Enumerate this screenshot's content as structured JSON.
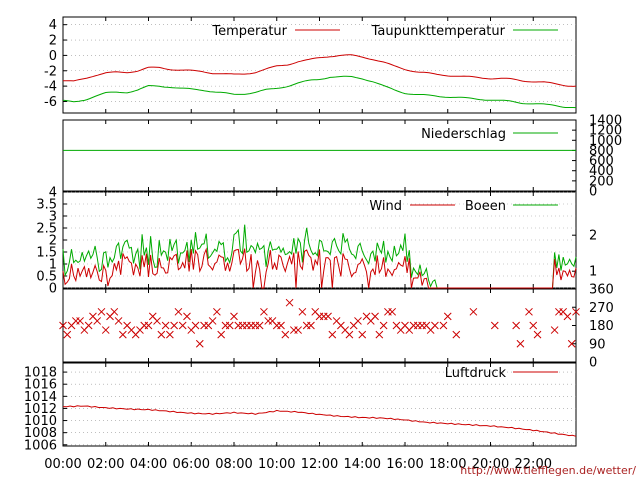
{
  "source_url": "http://www.tiefflegen.de/wetter/",
  "x_axis": {
    "tick_labels": [
      "00:00",
      "02:00",
      "04:00",
      "06:00",
      "08:00",
      "10:00",
      "12:00",
      "14:00",
      "16:00",
      "18:00",
      "20:00",
      "22:00"
    ],
    "range_hours": [
      0,
      24
    ]
  },
  "colors": {
    "red": "#cc0000",
    "green": "#00aa00",
    "grid": "#999999"
  },
  "chart_data": [
    {
      "type": "line",
      "panel": "temperature",
      "x_hours": [
        0,
        0.5,
        1,
        1.5,
        2,
        2.5,
        3,
        3.5,
        4,
        4.5,
        5,
        5.5,
        6,
        6.5,
        7,
        7.5,
        8,
        8.5,
        9,
        9.5,
        10,
        10.5,
        11,
        11.5,
        12,
        12.5,
        13,
        13.5,
        14,
        14.5,
        15,
        15.5,
        16,
        16.5,
        17,
        17.5,
        18,
        18.5,
        19,
        19.5,
        20,
        20.5,
        21,
        21.5,
        22,
        22.5,
        23,
        23.5,
        24
      ],
      "series": [
        {
          "name": "Temperatur",
          "color": "#cc0000",
          "values": [
            -3.3,
            -3.4,
            -3.0,
            -2.6,
            -2.3,
            -2.2,
            -2.2,
            -2.0,
            -1.6,
            -1.6,
            -1.8,
            -1.9,
            -2.0,
            -2.1,
            -2.3,
            -2.4,
            -2.5,
            -2.4,
            -2.2,
            -1.8,
            -1.4,
            -1.2,
            -0.8,
            -0.6,
            -0.3,
            -0.1,
            0.0,
            0.0,
            -0.2,
            -0.5,
            -0.9,
            -1.4,
            -1.8,
            -2.1,
            -2.3,
            -2.5,
            -2.6,
            -2.7,
            -2.8,
            -2.9,
            -3.0,
            -3.0,
            -3.1,
            -3.3,
            -3.4,
            -3.5,
            -3.7,
            -3.9,
            -4.0
          ]
        },
        {
          "name": "Taupunkttemperatur",
          "color": "#00aa00",
          "values": [
            -5.9,
            -6.1,
            -5.8,
            -5.3,
            -4.9,
            -4.8,
            -4.8,
            -4.5,
            -4.0,
            -4.0,
            -4.1,
            -4.3,
            -4.4,
            -4.5,
            -4.7,
            -4.9,
            -5.1,
            -5.0,
            -4.8,
            -4.5,
            -4.3,
            -4.0,
            -3.6,
            -3.3,
            -3.1,
            -2.8,
            -2.8,
            -2.8,
            -3.0,
            -3.4,
            -4.0,
            -4.5,
            -4.9,
            -5.1,
            -5.2,
            -5.3,
            -5.4,
            -5.5,
            -5.6,
            -5.7,
            -5.8,
            -5.9,
            -6.0,
            -6.2,
            -6.3,
            -6.4,
            -6.5,
            -6.7,
            -6.8
          ]
        }
      ],
      "ylim": [
        -7.5,
        5
      ],
      "ytick_labels": [
        "4",
        "2",
        "0",
        "-2",
        "-4",
        "-6"
      ],
      "ytick_values": [
        4,
        2,
        0,
        -2,
        -4,
        -6
      ],
      "grid": true,
      "legend_position": "top"
    },
    {
      "type": "line",
      "panel": "precipitation",
      "series": [
        {
          "name": "Niederschlag",
          "color": "#00aa00",
          "constant_value": 800
        }
      ],
      "ylim": [
        0,
        1400
      ],
      "ytick_labels_right": [
        "1400",
        "1200",
        "1000",
        "800",
        "600",
        "400",
        "200",
        "0"
      ],
      "ytick_values_right": [
        1400,
        1200,
        1000,
        800,
        600,
        400,
        200,
        0
      ],
      "legend_position": "top-right"
    },
    {
      "type": "line",
      "panel": "wind",
      "series": [
        {
          "name": "Wind",
          "color": "#cc0000"
        },
        {
          "name": "Boeen",
          "color": "#00aa00"
        }
      ],
      "ylim": [
        0,
        4
      ],
      "ytick_labels": [
        "4",
        "3.5",
        "3",
        "2.5",
        "2",
        "1.5",
        "1",
        "0.5",
        "0"
      ],
      "ytick_values": [
        4,
        3.5,
        3,
        2.5,
        2,
        1.5,
        1,
        0.5,
        0
      ],
      "ytick_labels_right": [
        "2",
        "1"
      ],
      "ytick_values_right": [
        2,
        1
      ],
      "right_axis_mapping": {
        "1": 0.7,
        "2": 2.2
      },
      "grid": true,
      "legend_position": "top-right",
      "calm_intervals_hours": [
        [
          17.4,
          23.0
        ]
      ]
    },
    {
      "type": "scatter",
      "panel": "wind_direction",
      "marker": "x",
      "color": "#cc0000",
      "ylim": [
        0,
        360
      ],
      "ytick_labels_right": [
        "360",
        "270",
        "180",
        "90",
        "0"
      ],
      "ytick_values_right": [
        360,
        270,
        180,
        90,
        0
      ],
      "typical_value": 180
    },
    {
      "type": "line",
      "panel": "pressure",
      "x_hours": [
        0,
        1,
        2,
        3,
        4,
        5,
        6,
        7,
        8,
        9,
        10,
        11,
        12,
        13,
        14,
        15,
        16,
        17,
        18,
        19,
        20,
        21,
        22,
        23,
        24
      ],
      "series": [
        {
          "name": "Luftdruck",
          "color": "#cc0000",
          "values": [
            1012.3,
            1012.4,
            1012.1,
            1011.9,
            1011.8,
            1011.5,
            1011.2,
            1011.1,
            1011.3,
            1011.1,
            1011.6,
            1011.4,
            1011.0,
            1010.7,
            1010.5,
            1010.4,
            1010.1,
            1009.7,
            1009.5,
            1009.3,
            1009.1,
            1008.8,
            1008.4,
            1007.9,
            1007.4
          ]
        }
      ],
      "ylim": [
        1005.8,
        1019.5
      ],
      "ytick_labels": [
        "1018",
        "1016",
        "1014",
        "1012",
        "1010",
        "1008",
        "1006"
      ],
      "ytick_values": [
        1018,
        1016,
        1014,
        1012,
        1010,
        1008,
        1006
      ],
      "grid": true,
      "legend_position": "top-right"
    }
  ]
}
